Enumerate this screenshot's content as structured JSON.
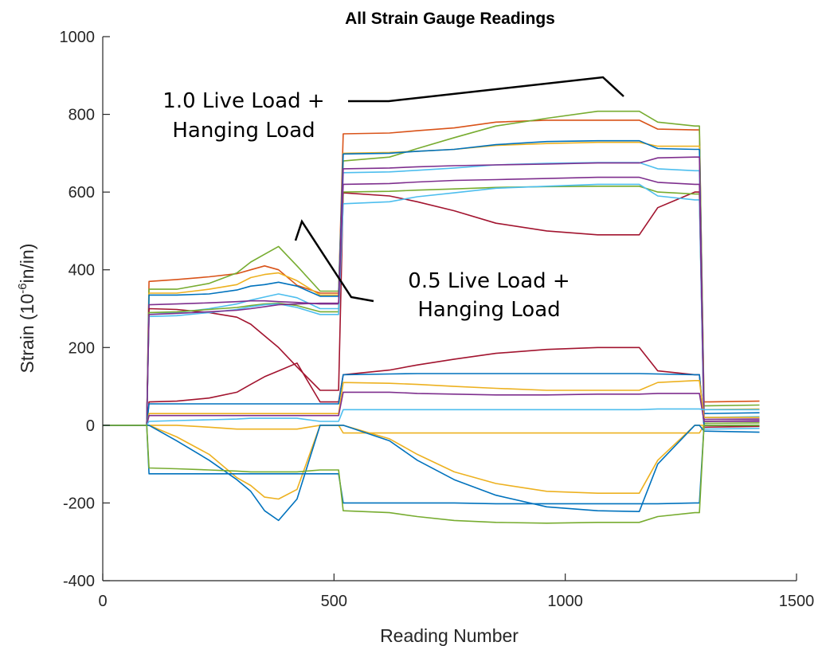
{
  "chart_data": {
    "type": "line",
    "title": "All Strain Gauge Readings",
    "xlabel": "Reading Number",
    "ylabel": "Strain (10^-6 in/in)",
    "ylabel_parts": {
      "before": "Strain (10",
      "sup": "-6",
      "after": "in/in)"
    },
    "xlim": [
      0,
      1500
    ],
    "ylim": [
      -400,
      1000
    ],
    "xticks": [
      0,
      500,
      1000,
      1500
    ],
    "yticks": [
      -400,
      -200,
      0,
      200,
      400,
      600,
      800,
      1000
    ],
    "grid": false,
    "legend": "none",
    "annotations": [
      {
        "lines": [
          "1.0 Live Load +",
          "Hanging Load"
        ]
      },
      {
        "lines": [
          "0.5 Live Load +",
          "Hanging Load"
        ]
      }
    ],
    "x": [
      0,
      95,
      100,
      160,
      230,
      290,
      320,
      350,
      380,
      420,
      470,
      510,
      520,
      620,
      680,
      760,
      850,
      960,
      1070,
      1160,
      1200,
      1280,
      1290,
      1300,
      1420
    ],
    "series": [
      {
        "color": "#D95319",
        "values": [
          0,
          0,
          370,
          375,
          382,
          390,
          400,
          410,
          400,
          360,
          340,
          340,
          750,
          752,
          758,
          765,
          780,
          785,
          785,
          785,
          762,
          760,
          760,
          60,
          62
        ]
      },
      {
        "color": "#77AC30",
        "values": [
          0,
          0,
          350,
          350,
          365,
          392,
          420,
          440,
          460,
          410,
          345,
          345,
          680,
          690,
          712,
          740,
          770,
          790,
          808,
          808,
          780,
          770,
          770,
          50,
          52
        ]
      },
      {
        "color": "#EDB120",
        "values": [
          0,
          0,
          340,
          340,
          350,
          362,
          380,
          388,
          392,
          372,
          335,
          335,
          700,
          702,
          705,
          710,
          720,
          725,
          728,
          728,
          718,
          718,
          718,
          40,
          42
        ]
      },
      {
        "color": "#0072BD",
        "values": [
          0,
          0,
          335,
          335,
          338,
          348,
          358,
          362,
          368,
          358,
          332,
          332,
          698,
          700,
          705,
          710,
          722,
          730,
          732,
          732,
          712,
          710,
          710,
          30,
          32
        ]
      },
      {
        "color": "#4DBEEE",
        "values": [
          0,
          0,
          290,
          290,
          300,
          312,
          322,
          330,
          338,
          328,
          300,
          300,
          650,
          652,
          656,
          662,
          670,
          674,
          676,
          676,
          660,
          655,
          655,
          20,
          22
        ]
      },
      {
        "color": "#7E2F8E",
        "values": [
          0,
          0,
          310,
          312,
          315,
          318,
          320,
          320,
          318,
          316,
          312,
          312,
          660,
          662,
          665,
          668,
          670,
          672,
          675,
          675,
          688,
          690,
          690,
          10,
          12
        ]
      },
      {
        "color": "#A2142F",
        "values": [
          0,
          0,
          300,
          298,
          290,
          278,
          260,
          230,
          200,
          150,
          90,
          90,
          598,
          590,
          575,
          552,
          520,
          500,
          490,
          490,
          560,
          600,
          600,
          -5,
          -3
        ]
      },
      {
        "color": "#77AC30",
        "values": [
          0,
          0,
          290,
          292,
          298,
          303,
          308,
          312,
          314,
          308,
          292,
          292,
          600,
          602,
          605,
          608,
          612,
          614,
          615,
          615,
          600,
          595,
          595,
          5,
          6
        ]
      },
      {
        "color": "#4DBEEE",
        "values": [
          0,
          0,
          280,
          282,
          290,
          298,
          305,
          310,
          312,
          303,
          285,
          285,
          570,
          575,
          588,
          598,
          610,
          615,
          620,
          620,
          590,
          580,
          580,
          -10,
          -8
        ]
      },
      {
        "color": "#7E2F8E",
        "values": [
          0,
          0,
          285,
          288,
          292,
          296,
          300,
          305,
          310,
          312,
          314,
          314,
          620,
          622,
          626,
          630,
          632,
          635,
          638,
          638,
          625,
          620,
          620,
          15,
          16
        ]
      },
      {
        "color": "#A2142F",
        "values": [
          0,
          0,
          60,
          62,
          70,
          85,
          105,
          125,
          140,
          160,
          60,
          60,
          130,
          142,
          155,
          170,
          185,
          195,
          200,
          200,
          140,
          130,
          130,
          0,
          0
        ]
      },
      {
        "color": "#0072BD",
        "values": [
          0,
          0,
          55,
          55,
          55,
          55,
          55,
          55,
          55,
          55,
          55,
          55,
          130,
          132,
          133,
          133,
          133,
          133,
          133,
          133,
          132,
          130,
          130,
          0,
          0
        ]
      },
      {
        "color": "#EDB120",
        "values": [
          0,
          0,
          30,
          30,
          30,
          30,
          30,
          30,
          30,
          30,
          30,
          30,
          110,
          108,
          105,
          100,
          95,
          90,
          90,
          90,
          110,
          115,
          115,
          20,
          20
        ]
      },
      {
        "color": "#7E2F8E",
        "values": [
          0,
          0,
          25,
          25,
          25,
          25,
          25,
          25,
          25,
          25,
          25,
          25,
          85,
          85,
          82,
          80,
          78,
          78,
          80,
          80,
          82,
          82,
          82,
          10,
          10
        ]
      },
      {
        "color": "#4DBEEE",
        "values": [
          0,
          0,
          10,
          12,
          14,
          16,
          18,
          18,
          18,
          18,
          10,
          10,
          40,
          40,
          40,
          40,
          40,
          40,
          40,
          40,
          42,
          42,
          42,
          40,
          40
        ]
      },
      {
        "color": "#EDB120",
        "values": [
          0,
          0,
          0,
          0,
          -5,
          -10,
          -10,
          -10,
          -10,
          -10,
          0,
          0,
          -20,
          -20,
          -20,
          -20,
          -20,
          -20,
          -20,
          -20,
          -20,
          -20,
          -20,
          0,
          0
        ]
      },
      {
        "color": "#EDB120",
        "values": [
          0,
          0,
          0,
          -30,
          -75,
          -135,
          -155,
          -185,
          -190,
          -165,
          0,
          0,
          0,
          -35,
          -75,
          -120,
          -150,
          -170,
          -175,
          -175,
          -90,
          0,
          0,
          0,
          0
        ]
      },
      {
        "color": "#0072BD",
        "values": [
          0,
          0,
          0,
          -40,
          -90,
          -140,
          -170,
          -220,
          -245,
          -190,
          0,
          0,
          0,
          -40,
          -90,
          -140,
          -180,
          -210,
          -220,
          -222,
          -100,
          0,
          0,
          -15,
          -18
        ]
      },
      {
        "color": "#0072BD",
        "values": [
          0,
          0,
          -125,
          -125,
          -125,
          -125,
          -125,
          -125,
          -125,
          -125,
          -125,
          -125,
          -200,
          -200,
          -200,
          -200,
          -202,
          -202,
          -202,
          -202,
          -202,
          -200,
          -200,
          0,
          0
        ]
      },
      {
        "color": "#77AC30",
        "values": [
          0,
          0,
          -110,
          -112,
          -115,
          -118,
          -120,
          -120,
          -120,
          -120,
          -115,
          -115,
          -220,
          -225,
          -235,
          -245,
          -250,
          -252,
          -250,
          -250,
          -235,
          -225,
          -225,
          0,
          0
        ]
      }
    ]
  }
}
